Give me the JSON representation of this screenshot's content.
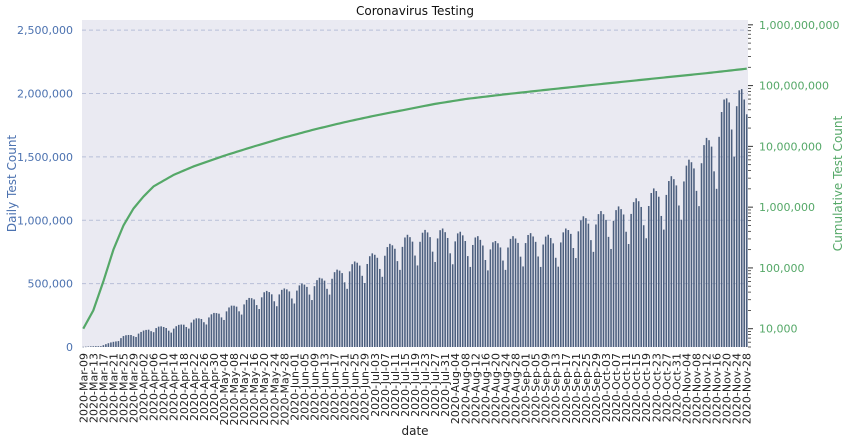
{
  "chart_data": {
    "type": "bar+line",
    "title": "Coronavirus Testing",
    "xlabel": "date",
    "left_axis": {
      "label": "Daily Test Count",
      "ylim": [
        0,
        2580000
      ],
      "ticks": [
        "0",
        "500,000",
        "1,000,000",
        "1,500,000",
        "2,000,000",
        "2,500,000"
      ],
      "tick_values": [
        0,
        500000,
        1000000,
        1500000,
        2000000,
        2500000
      ],
      "color": "#4c72b0"
    },
    "right_axis": {
      "label": "Cumulative Test Count",
      "scale": "log",
      "ylim": [
        5000,
        1200000000
      ],
      "ticks": [
        "10,000",
        "100,000",
        "1,000,000",
        "10,000,000",
        "100,000,000",
        "1,000,000,000"
      ],
      "tick_values": [
        10000,
        100000,
        1000000,
        10000000,
        100000000,
        1000000000
      ],
      "color": "#55a868"
    },
    "x_start": "2020-03-09",
    "x_end": "2020-11-28",
    "x_tick_labels": [
      "2020-Mar-09",
      "2020-Mar-13",
      "2020-Mar-17",
      "2020-Mar-21",
      "2020-Mar-25",
      "2020-Mar-29",
      "2020-Apr-02",
      "2020-Apr-06",
      "2020-Apr-10",
      "2020-Apr-14",
      "2020-Apr-18",
      "2020-Apr-22",
      "2020-Apr-26",
      "2020-Apr-30",
      "2020-May-04",
      "2020-May-08",
      "2020-May-12",
      "2020-May-16",
      "2020-May-20",
      "2020-May-24",
      "2020-May-28",
      "2020-Jun-01",
      "2020-Jun-05",
      "2020-Jun-09",
      "2020-Jun-13",
      "2020-Jun-17",
      "2020-Jun-21",
      "2020-Jun-25",
      "2020-Jun-29",
      "2020-Jul-03",
      "2020-Jul-07",
      "2020-Jul-11",
      "2020-Jul-15",
      "2020-Jul-19",
      "2020-Jul-23",
      "2020-Jul-27",
      "2020-Jul-31",
      "2020-Aug-04",
      "2020-Aug-08",
      "2020-Aug-12",
      "2020-Aug-16",
      "2020-Aug-20",
      "2020-Aug-24",
      "2020-Aug-28",
      "2020-Sep-01",
      "2020-Sep-05",
      "2020-Sep-09",
      "2020-Sep-13",
      "2020-Sep-17",
      "2020-Sep-21",
      "2020-Sep-25",
      "2020-Sep-29",
      "2020-Oct-03",
      "2020-Oct-07",
      "2020-Oct-11",
      "2020-Oct-15",
      "2020-Oct-19",
      "2020-Oct-23",
      "2020-Oct-27",
      "2020-Oct-31",
      "2020-Nov-04",
      "2020-Nov-08",
      "2020-Nov-12",
      "2020-Nov-16",
      "2020-Nov-20",
      "2020-Nov-24",
      "2020-Nov-28"
    ],
    "daily_anchors": [
      {
        "date": "2020-03-09",
        "value": 2000
      },
      {
        "date": "2020-03-16",
        "value": 8000
      },
      {
        "date": "2020-03-21",
        "value": 40000
      },
      {
        "date": "2020-03-25",
        "value": 80000
      },
      {
        "date": "2020-04-01",
        "value": 110000
      },
      {
        "date": "2020-04-06",
        "value": 150000
      },
      {
        "date": "2020-04-14",
        "value": 145000
      },
      {
        "date": "2020-04-22",
        "value": 200000
      },
      {
        "date": "2020-05-01",
        "value": 250000
      },
      {
        "date": "2020-05-10",
        "value": 320000
      },
      {
        "date": "2020-05-20",
        "value": 400000
      },
      {
        "date": "2020-05-28",
        "value": 420000
      },
      {
        "date": "2020-06-09",
        "value": 480000
      },
      {
        "date": "2020-06-21",
        "value": 580000
      },
      {
        "date": "2020-07-03",
        "value": 680000
      },
      {
        "date": "2020-07-15",
        "value": 800000
      },
      {
        "date": "2020-07-27",
        "value": 860000
      },
      {
        "date": "2020-08-08",
        "value": 820000
      },
      {
        "date": "2020-08-20",
        "value": 760000
      },
      {
        "date": "2020-09-01",
        "value": 820000
      },
      {
        "date": "2020-09-13",
        "value": 800000
      },
      {
        "date": "2020-09-25",
        "value": 950000
      },
      {
        "date": "2020-10-07",
        "value": 1000000
      },
      {
        "date": "2020-10-19",
        "value": 1100000
      },
      {
        "date": "2020-10-31",
        "value": 1250000
      },
      {
        "date": "2020-11-08",
        "value": 1400000
      },
      {
        "date": "2020-11-16",
        "value": 1600000
      },
      {
        "date": "2020-11-22",
        "value": 1950000
      },
      {
        "date": "2020-11-28",
        "value": 1800000
      }
    ],
    "cumulative_anchors": [
      {
        "date": "2020-03-09",
        "value": 10000
      },
      {
        "date": "2020-03-13",
        "value": 20000
      },
      {
        "date": "2020-03-17",
        "value": 60000
      },
      {
        "date": "2020-03-21",
        "value": 200000
      },
      {
        "date": "2020-03-25",
        "value": 500000
      },
      {
        "date": "2020-03-29",
        "value": 950000
      },
      {
        "date": "2020-04-02",
        "value": 1500000
      },
      {
        "date": "2020-04-06",
        "value": 2200000
      },
      {
        "date": "2020-04-14",
        "value": 3400000
      },
      {
        "date": "2020-04-22",
        "value": 4700000
      },
      {
        "date": "2020-05-04",
        "value": 7000000
      },
      {
        "date": "2020-05-16",
        "value": 10000000
      },
      {
        "date": "2020-05-28",
        "value": 14000000
      },
      {
        "date": "2020-06-09",
        "value": 19000000
      },
      {
        "date": "2020-06-21",
        "value": 25000000
      },
      {
        "date": "2020-07-03",
        "value": 32000000
      },
      {
        "date": "2020-07-15",
        "value": 40000000
      },
      {
        "date": "2020-07-27",
        "value": 50000000
      },
      {
        "date": "2020-08-08",
        "value": 60000000
      },
      {
        "date": "2020-08-24",
        "value": 72000000
      },
      {
        "date": "2020-09-09",
        "value": 85000000
      },
      {
        "date": "2020-09-25",
        "value": 100000000
      },
      {
        "date": "2020-10-11",
        "value": 117000000
      },
      {
        "date": "2020-10-27",
        "value": 137000000
      },
      {
        "date": "2020-11-12",
        "value": 160000000
      },
      {
        "date": "2020-11-28",
        "value": 190000000
      }
    ],
    "grid": true,
    "legend": "none"
  }
}
